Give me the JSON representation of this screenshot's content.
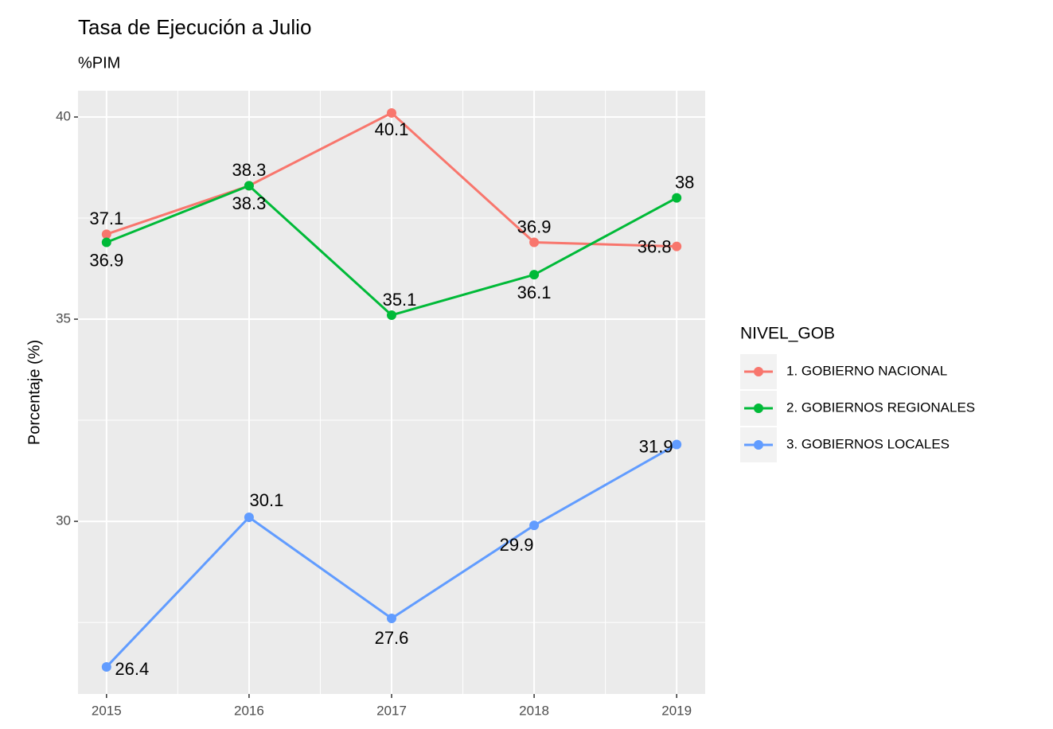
{
  "chart_data": {
    "type": "line",
    "title": "Tasa de Ejecución a  Julio",
    "subtitle": "%PIM",
    "y_label": "Porcentaje (%)",
    "legend_title": "NIVEL_GOB",
    "legend_position": "right",
    "grid": true,
    "x": [
      2015,
      2016,
      2017,
      2018,
      2019
    ],
    "xlim": [
      2014.8,
      2019.2
    ],
    "xticks": [
      2015,
      2016,
      2017,
      2018,
      2019
    ],
    "ylim": [
      25.73,
      40.65
    ],
    "yticks": [
      30,
      35,
      40
    ],
    "series": [
      {
        "name": "1. GOBIERNO NACIONAL",
        "color": "#F8766D",
        "values": [
          37.1,
          38.3,
          40.1,
          36.9,
          36.8
        ]
      },
      {
        "name": "2. GOBIERNOS REGIONALES",
        "color": "#00BA38",
        "values": [
          36.9,
          38.3,
          35.1,
          36.1,
          38
        ]
      },
      {
        "name": "3. GOBIERNOS LOCALES",
        "color": "#619CFF",
        "values": [
          26.4,
          30.1,
          27.6,
          29.9,
          31.9
        ]
      }
    ]
  }
}
